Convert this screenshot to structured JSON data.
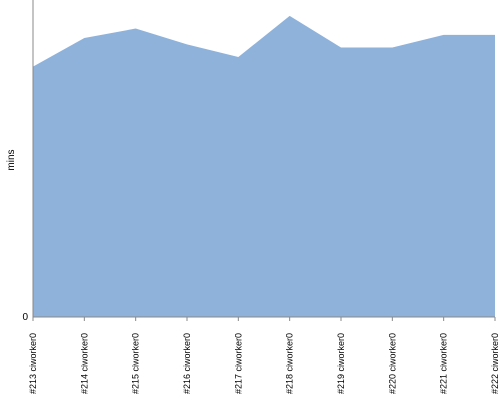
{
  "chart_data": {
    "type": "area",
    "y_label": "mins",
    "categories": [
      "#213 ciworker0",
      "#214 ciworker0",
      "#215 ciworker0",
      "#216 ciworker0",
      "#217 ciworker0",
      "#218 ciworker0",
      "#219 ciworker0",
      "#220 ciworker0",
      "#221 ciworker0",
      "#222 ciworker0"
    ],
    "values": [
      7.9,
      8.8,
      9.1,
      8.6,
      8.2,
      9.5,
      8.5,
      8.5,
      8.9,
      8.9
    ],
    "color": "#8fb2db",
    "ylim": [
      0,
      10
    ],
    "yticks": [
      0
    ],
    "grid": false
  }
}
